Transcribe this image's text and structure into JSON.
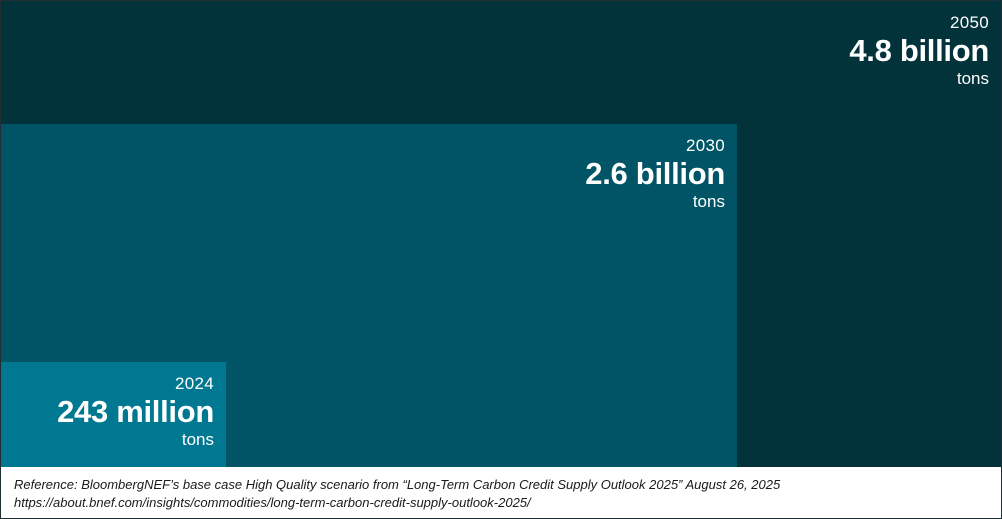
{
  "chart_data": {
    "type": "area",
    "title": "",
    "unit": "tons",
    "series": [
      {
        "year": "2050",
        "value": 4.8,
        "value_label": "4.8 billion",
        "unit_label": "tons",
        "color": "#02333b"
      },
      {
        "year": "2030",
        "value": 2.6,
        "value_label": "2.6 billion",
        "unit_label": "tons",
        "color": "#015466"
      },
      {
        "year": "2024",
        "value": 0.243,
        "value_label": "243 million",
        "unit_label": "tons",
        "color": "#017891"
      }
    ],
    "encoding": "nested squares, area proportional to value (billion tons)"
  },
  "reference": {
    "line1": "Reference: BloombergNEF’s base case High Quality scenario from “Long-Term Carbon Credit Supply Outlook 2025” August 26, 2025",
    "line2": "https://about.bnef.com/insights/commodities/long-term-carbon-credit-supply-outlook-2025/"
  }
}
